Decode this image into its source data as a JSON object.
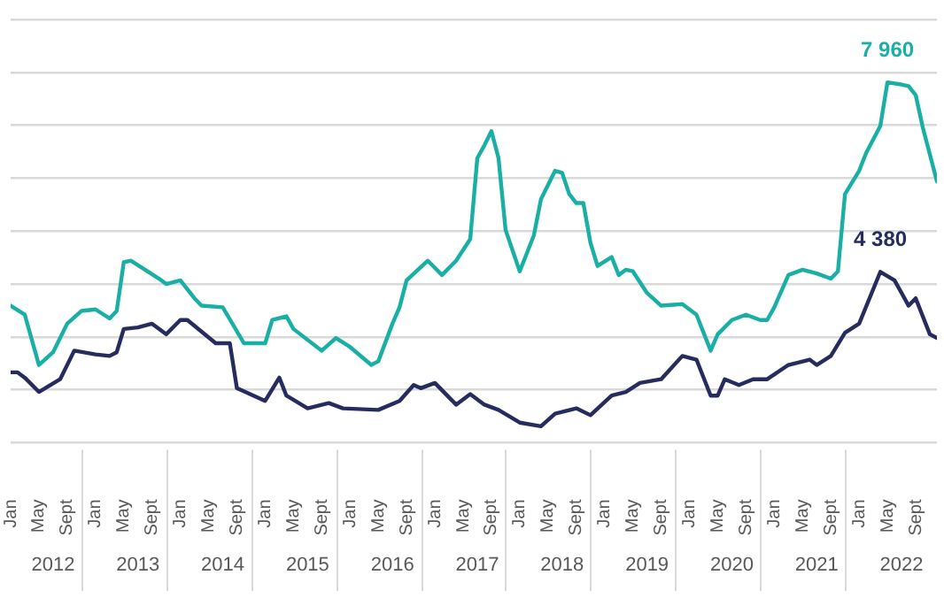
{
  "chart_data": {
    "type": "line",
    "xlim": [
      "2012-01",
      "2022-12"
    ],
    "xticks": [
      {
        "value": "2012-01",
        "label": "Jan"
      },
      {
        "value": "2012-05",
        "label": "May"
      },
      {
        "value": "2012-09",
        "label": "Sept"
      },
      {
        "value": "2013-01",
        "label": "Jan"
      },
      {
        "value": "2013-05",
        "label": "May"
      },
      {
        "value": "2013-09",
        "label": "Sept"
      },
      {
        "value": "2014-01",
        "label": "Jan"
      },
      {
        "value": "2014-05",
        "label": "May"
      },
      {
        "value": "2014-09",
        "label": "Sept"
      },
      {
        "value": "2015-01",
        "label": "Jan"
      },
      {
        "value": "2015-05",
        "label": "May"
      },
      {
        "value": "2015-09",
        "label": "Sept"
      },
      {
        "value": "2016-01",
        "label": "Jan"
      },
      {
        "value": "2016-05",
        "label": "May"
      },
      {
        "value": "2016-09",
        "label": "Sept"
      },
      {
        "value": "2017-01",
        "label": "Jan"
      },
      {
        "value": "2017-05",
        "label": "May"
      },
      {
        "value": "2017-09",
        "label": "Sept"
      },
      {
        "value": "2018-01",
        "label": "Jan"
      },
      {
        "value": "2018-05",
        "label": "May"
      },
      {
        "value": "2018-09",
        "label": "Sept"
      },
      {
        "value": "2019-01",
        "label": "Jan"
      },
      {
        "value": "2019-05",
        "label": "May"
      },
      {
        "value": "2019-09",
        "label": "Sept"
      },
      {
        "value": "2020-01",
        "label": "Jan"
      },
      {
        "value": "2020-05",
        "label": "May"
      },
      {
        "value": "2020-09",
        "label": "Sept"
      },
      {
        "value": "2021-01",
        "label": "Jan"
      },
      {
        "value": "2021-05",
        "label": "May"
      },
      {
        "value": "2021-09",
        "label": "Sept"
      },
      {
        "value": "2022-01",
        "label": "Jan"
      },
      {
        "value": "2022-05",
        "label": "May"
      },
      {
        "value": "2022-09",
        "label": "Sept"
      }
    ],
    "x2lim": [
      "2012-01",
      "2022-12"
    ],
    "x2ticks": [
      {
        "value": "2012-07",
        "label": "2012"
      },
      {
        "value": "2013-07",
        "label": "2013"
      },
      {
        "value": "2014-07",
        "label": "2014"
      },
      {
        "value": "2015-07",
        "label": "2015"
      },
      {
        "value": "2016-07",
        "label": "2016"
      },
      {
        "value": "2017-07",
        "label": "2017"
      },
      {
        "value": "2018-07",
        "label": "2018"
      },
      {
        "value": "2019-07",
        "label": "2019"
      },
      {
        "value": "2020-07",
        "label": "2020"
      },
      {
        "value": "2021-07",
        "label": "2021"
      },
      {
        "value": "2022-07",
        "label": "2022"
      }
    ],
    "yticks": [
      {
        "value": 1150,
        "label": null
      },
      {
        "value": 2150,
        "label": null
      },
      {
        "value": 3150,
        "label": null
      },
      {
        "value": 4150,
        "label": null
      },
      {
        "value": 5150,
        "label": null
      },
      {
        "value": 6150,
        "label": null
      },
      {
        "value": 7150,
        "label": null
      },
      {
        "value": 8150,
        "label": null
      },
      {
        "value": 9150,
        "label": null
      }
    ],
    "tick_labels": "x",
    "grid": "y",
    "legend": false,
    "marker": "none",
    "line_style": "solid",
    "series": [
      {
        "color": "#1aafa5",
        "x": [
          "2012-01",
          "2012-03",
          "2012-05",
          "2012-07",
          "2012-09",
          "2012-11",
          "2013-01",
          "2013-03",
          "2013-04",
          "2013-05",
          "2013-06",
          "2013-08",
          "2013-10",
          "2013-11",
          "2014-01",
          "2014-03",
          "2014-04",
          "2014-07",
          "2014-10",
          "2015-01",
          "2015-02",
          "2015-04",
          "2015-05",
          "2015-09",
          "2015-11",
          "2016-01",
          "2016-04",
          "2016-05",
          "2016-07",
          "2016-08",
          "2016-09",
          "2016-12",
          "2017-02",
          "2017-04",
          "2017-06",
          "2017-07",
          "2017-08",
          "2017-09",
          "2017-10",
          "2017-11",
          "2018-01",
          "2018-03",
          "2018-04",
          "2018-06",
          "2018-07",
          "2018-08",
          "2018-09",
          "2018-10",
          "2018-11",
          "2018-12",
          "2019-02",
          "2019-03",
          "2019-04",
          "2019-05",
          "2019-07",
          "2019-09",
          "2019-12",
          "2020-02",
          "2020-04",
          "2020-05",
          "2020-07",
          "2020-09",
          "2020-11",
          "2020-12",
          "2021-01",
          "2021-03",
          "2021-05",
          "2021-07",
          "2021-09",
          "2021-10",
          "2021-11",
          "2022-01",
          "2022-02",
          "2022-04",
          "2022-05",
          "2022-07",
          "2022-08",
          "2022-09",
          "2022-10",
          "2022-12"
        ],
        "values": [
          3740,
          3570,
          2620,
          2860,
          3400,
          3640,
          3670,
          3500,
          3640,
          4560,
          4590,
          4420,
          4250,
          4150,
          4220,
          3880,
          3740,
          3710,
          3030,
          3030,
          3470,
          3540,
          3300,
          2890,
          3130,
          2960,
          2620,
          2690,
          3400,
          3710,
          4220,
          4590,
          4320,
          4590,
          5000,
          6530,
          6770,
          7040,
          6530,
          5170,
          4390,
          5070,
          5750,
          6290,
          6250,
          5850,
          5680,
          5680,
          4930,
          4490,
          4660,
          4320,
          4420,
          4390,
          3980,
          3740,
          3770,
          3570,
          2890,
          3200,
          3470,
          3570,
          3470,
          3470,
          3710,
          4320,
          4420,
          4350,
          4250,
          4390,
          5850,
          6290,
          6630,
          7140,
          7960,
          7920,
          7890,
          7720,
          7110,
          6090
        ],
        "value_labels": [
          null,
          null,
          null,
          null,
          null,
          null,
          null,
          null,
          null,
          null,
          null,
          null,
          null,
          null,
          null,
          null,
          null,
          null,
          null,
          null,
          null,
          null,
          null,
          null,
          null,
          null,
          null,
          null,
          null,
          null,
          null,
          null,
          null,
          null,
          null,
          null,
          null,
          null,
          null,
          null,
          null,
          null,
          null,
          null,
          null,
          null,
          null,
          null,
          null,
          null,
          null,
          null,
          null,
          null,
          null,
          null,
          null,
          null,
          null,
          null,
          null,
          null,
          null,
          null,
          null,
          null,
          null,
          null,
          null,
          null,
          null,
          null,
          null,
          null,
          "7 960",
          null,
          null,
          null,
          null,
          null
        ]
      },
      {
        "color": "#262d5e",
        "x": [
          "2012-01",
          "2012-02",
          "2012-03",
          "2012-05",
          "2012-08",
          "2012-10",
          "2013-01",
          "2013-03",
          "2013-04",
          "2013-05",
          "2013-07",
          "2013-09",
          "2013-11",
          "2014-01",
          "2014-02",
          "2014-06",
          "2014-08",
          "2014-09",
          "2015-01",
          "2015-03",
          "2015-04",
          "2015-07",
          "2015-10",
          "2015-12",
          "2016-05",
          "2016-08",
          "2016-10",
          "2016-11",
          "2017-01",
          "2017-04",
          "2017-06",
          "2017-08",
          "2017-10",
          "2018-01",
          "2018-04",
          "2018-06",
          "2018-09",
          "2018-11",
          "2019-02",
          "2019-04",
          "2019-06",
          "2019-09",
          "2019-12",
          "2020-02",
          "2020-04",
          "2020-05",
          "2020-06",
          "2020-08",
          "2020-10",
          "2020-12",
          "2021-03",
          "2021-06",
          "2021-07",
          "2021-09",
          "2021-11",
          "2022-01",
          "2022-04",
          "2022-06",
          "2022-08",
          "2022-09",
          "2022-11",
          "2022-12"
        ],
        "values": [
          2480,
          2480,
          2380,
          2110,
          2350,
          2890,
          2820,
          2790,
          2860,
          3300,
          3330,
          3400,
          3200,
          3470,
          3470,
          3030,
          3030,
          2180,
          1940,
          2380,
          2040,
          1800,
          1900,
          1800,
          1770,
          1940,
          2240,
          2180,
          2280,
          1870,
          2070,
          1870,
          1770,
          1530,
          1460,
          1700,
          1800,
          1670,
          2040,
          2110,
          2280,
          2350,
          2790,
          2720,
          2040,
          2040,
          2350,
          2240,
          2350,
          2350,
          2620,
          2720,
          2620,
          2790,
          3230,
          3400,
          4380,
          4220,
          3740,
          3880,
          3200,
          3130
        ],
        "value_labels": [
          null,
          null,
          null,
          null,
          null,
          null,
          null,
          null,
          null,
          null,
          null,
          null,
          null,
          null,
          null,
          null,
          null,
          null,
          null,
          null,
          null,
          null,
          null,
          null,
          null,
          null,
          null,
          null,
          null,
          null,
          null,
          null,
          null,
          null,
          null,
          null,
          null,
          null,
          null,
          null,
          null,
          null,
          null,
          null,
          null,
          null,
          null,
          null,
          null,
          null,
          null,
          null,
          null,
          null,
          null,
          null,
          "4 380",
          null,
          null,
          null,
          null,
          null
        ]
      }
    ]
  }
}
